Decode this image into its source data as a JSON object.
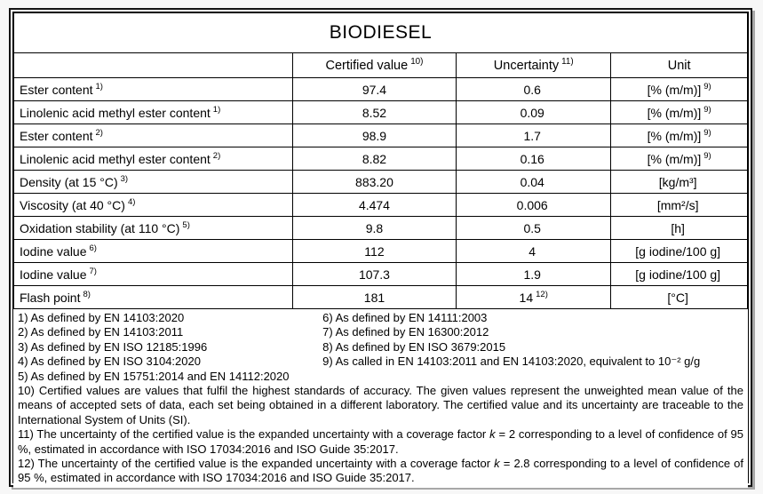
{
  "colors": {
    "page_background": "#f7f7f7",
    "table_background": "#ffffff",
    "border": "#000000",
    "frame_shadow": "#a8a8a8"
  },
  "title": "BIODIESEL",
  "columns": {
    "param": "",
    "value": "Certified value",
    "value_sup": "10)",
    "uncertainty": "Uncertainty",
    "uncertainty_sup": "11)",
    "unit": "Unit"
  },
  "rows": [
    {
      "param": "Ester content",
      "param_sup": "1)",
      "value": "97.4",
      "uncertainty": "0.6",
      "uncertainty_sup": "",
      "unit": "[% (m/m)]",
      "unit_sup": "9)"
    },
    {
      "param": "Linolenic acid methyl ester content",
      "param_sup": "1)",
      "value": "8.52",
      "uncertainty": "0.09",
      "uncertainty_sup": "",
      "unit": "[% (m/m)]",
      "unit_sup": "9)"
    },
    {
      "param": "Ester content",
      "param_sup": "2)",
      "value": "98.9",
      "uncertainty": "1.7",
      "uncertainty_sup": "",
      "unit": "[% (m/m)]",
      "unit_sup": "9)"
    },
    {
      "param": "Linolenic acid methyl ester content",
      "param_sup": "2)",
      "value": "8.82",
      "uncertainty": "0.16",
      "uncertainty_sup": "",
      "unit": "[% (m/m)]",
      "unit_sup": "9)"
    },
    {
      "param": "Density (at 15 °C)",
      "param_sup": "3)",
      "value": "883.20",
      "uncertainty": "0.04",
      "uncertainty_sup": "",
      "unit": "[kg/m³]",
      "unit_sup": ""
    },
    {
      "param": "Viscosity (at 40 °C)",
      "param_sup": "4)",
      "value": "4.474",
      "uncertainty": "0.006",
      "uncertainty_sup": "",
      "unit": "[mm²/s]",
      "unit_sup": ""
    },
    {
      "param": "Oxidation stability (at 110 °C)",
      "param_sup": "5)",
      "value": "9.8",
      "uncertainty": "0.5",
      "uncertainty_sup": "",
      "unit": "[h]",
      "unit_sup": ""
    },
    {
      "param": "Iodine value",
      "param_sup": "6)",
      "value": "112",
      "uncertainty": "4",
      "uncertainty_sup": "",
      "unit": "[g iodine/100 g]",
      "unit_sup": ""
    },
    {
      "param": "Iodine value",
      "param_sup": "7)",
      "value": "107.3",
      "uncertainty": "1.9",
      "uncertainty_sup": "",
      "unit": "[g iodine/100 g]",
      "unit_sup": ""
    },
    {
      "param": "Flash point",
      "param_sup": "8)",
      "value": "181",
      "uncertainty": "14",
      "uncertainty_sup": "12)",
      "unit": "[°C]",
      "unit_sup": ""
    }
  ],
  "footnotes_left": [
    "1) As defined by EN 14103:2020",
    "2) As defined by EN 14103:2011",
    "3) As defined by EN ISO 12185:1996",
    "4) As defined by EN ISO 3104:2020",
    "5) As defined by EN 15751:2014 and EN 14112:2020"
  ],
  "footnotes_right": [
    "6) As defined by EN 14111:2003",
    "7) As defined by EN 16300:2012",
    "8) As defined by EN ISO 3679:2015",
    "9) As called in EN 14103:2011 and EN 14103:2020, equivalent to 10⁻² g/g"
  ],
  "footnote_10": "10) Certified values are values that fulfil the highest standards of accuracy. The given values represent the unweighted mean value of the means of accepted sets of data, each set being obtained in a different laboratory. The certified value and its uncertainty are traceable to the International System of Units (SI).",
  "footnote_11": {
    "pre": "11) The uncertainty of the certified value is the expanded uncertainty with a coverage factor ",
    "k": "k",
    "post": " = 2 corresponding to a level of confidence of 95 %, estimated in accordance with ISO 17034:2016 and ISO Guide 35:2017."
  },
  "footnote_12": {
    "pre": "12) The uncertainty of the certified value is the expanded uncertainty with a coverage factor ",
    "k": "k",
    "post": " = 2.8 corresponding to a level of confidence of 95 %, estimated in accordance with ISO 17034:2016 and ISO Guide 35:2017."
  }
}
